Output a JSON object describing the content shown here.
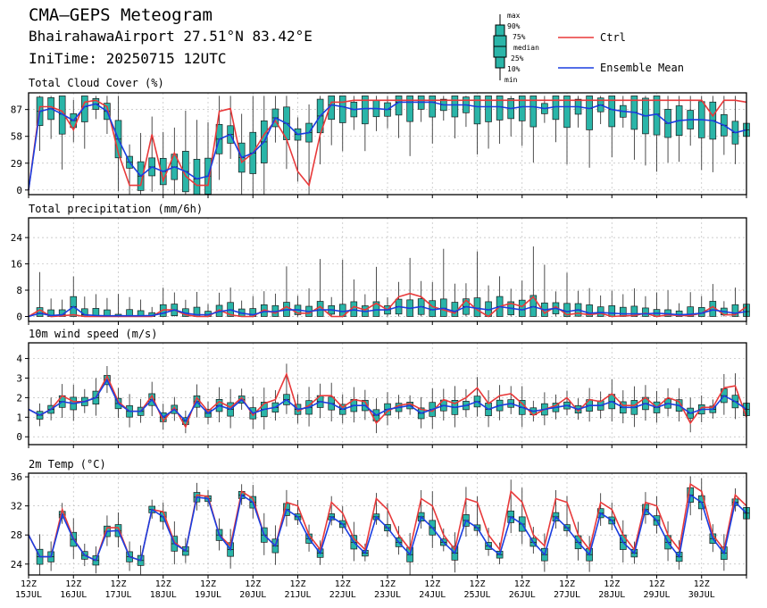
{
  "header": {
    "title": "CMA—GEPS Meteogram",
    "station": "BhairahawaAirport 27.51°N 83.42°E",
    "initime": "IniTime: 20250715 12UTC"
  },
  "legend": {
    "box_labels": [
      "max",
      "90%",
      "75%",
      "median",
      "25%",
      "10%",
      "min"
    ],
    "ctrl_label": "Ctrl",
    "mean_label": "Ensemble Mean",
    "ctrl_color": "#e8393a",
    "mean_color": "#1a3ee0",
    "box_color": "#2ab5a8"
  },
  "x_axis": {
    "tick_top": "12Z",
    "dates": [
      "15JUL",
      "16JUL",
      "17JUL",
      "18JUL",
      "19JUL",
      "20JUL",
      "21JUL",
      "22JUL",
      "23JUL",
      "24JUL",
      "25JUL",
      "26JUL",
      "27JUL",
      "28JUL",
      "29JUL",
      "30JUL"
    ]
  },
  "chart_data": [
    {
      "type": "box+line",
      "title": "Total Cloud Cover (%)",
      "ylim": [
        -5,
        105
      ],
      "yticks": [
        0,
        29,
        58,
        87
      ],
      "ctrl": [
        0,
        90,
        90,
        85,
        65,
        95,
        97,
        90,
        40,
        5,
        5,
        60,
        10,
        40,
        15,
        5,
        5,
        85,
        88,
        30,
        40,
        60,
        75,
        55,
        20,
        5,
        60,
        95,
        95,
        97,
        97,
        97,
        97,
        97,
        97,
        97,
        97,
        97,
        97,
        97,
        97,
        97,
        97,
        97,
        97,
        97,
        97,
        97,
        97,
        97,
        97,
        97,
        97,
        97,
        97,
        97,
        97,
        97,
        97,
        97,
        97,
        80,
        97,
        97,
        95
      ],
      "mean": [
        0,
        85,
        88,
        82,
        75,
        90,
        93,
        85,
        55,
        30,
        15,
        25,
        20,
        25,
        20,
        12,
        15,
        55,
        60,
        35,
        40,
        52,
        78,
        72,
        60,
        62,
        80,
        92,
        90,
        87,
        88,
        88,
        87,
        95,
        95,
        95,
        95,
        92,
        92,
        92,
        90,
        90,
        90,
        88,
        90,
        90,
        88,
        90,
        90,
        90,
        88,
        92,
        87,
        85,
        84,
        80,
        82,
        72,
        75,
        76,
        76,
        75,
        70,
        62,
        65
      ]
    },
    {
      "type": "box+line",
      "title": "Total precipitation (mm/6h)",
      "ylim": [
        -1.5,
        30
      ],
      "yticks": [
        0,
        8,
        16,
        24
      ],
      "ctrl": [
        0,
        2,
        0,
        0.2,
        0.5,
        0,
        0,
        0,
        0,
        0,
        0,
        0,
        2,
        2,
        0.5,
        0,
        0,
        2,
        0.5,
        0,
        0,
        2,
        1,
        3,
        1,
        1,
        3,
        0,
        0,
        3,
        2,
        4,
        2,
        6,
        7,
        6,
        3,
        2,
        1,
        5,
        2,
        0,
        3,
        4,
        3,
        6,
        1,
        3,
        0.5,
        1,
        0.5,
        1,
        0,
        0.2,
        0.3,
        1,
        0,
        0.5,
        0.3,
        0.3,
        1,
        3,
        0.5,
        0.5,
        3
      ],
      "mean": [
        0,
        1,
        0.3,
        0.5,
        3,
        0.5,
        0.3,
        0.2,
        0.2,
        0.2,
        0.2,
        0.3,
        1,
        2,
        1,
        0.5,
        0.5,
        1.5,
        2,
        1,
        0.5,
        1.5,
        1.5,
        2,
        2,
        1.5,
        2,
        2,
        1.5,
        2,
        1.5,
        2,
        2,
        3,
        2.5,
        3,
        2,
        2.5,
        1.5,
        3,
        2.5,
        2,
        3,
        2.5,
        2,
        3,
        2,
        2.5,
        1.5,
        2,
        1,
        1.2,
        1,
        0.8,
        0.8,
        0.8,
        1,
        0.8,
        0.5,
        0.7,
        1,
        2,
        1.5,
        1,
        1.5
      ]
    },
    {
      "type": "box+line",
      "title": "10m wind speed (m/s)",
      "ylim": [
        -0.4,
        4.8
      ],
      "yticks": [
        0,
        1,
        2,
        3,
        4
      ],
      "ctrl": [
        1.4,
        1.1,
        1.4,
        2.1,
        1.8,
        1.8,
        2.0,
        3.1,
        1.8,
        1.3,
        1.3,
        2.1,
        0.8,
        1.5,
        0.5,
        2.0,
        1.3,
        1.8,
        1.5,
        2.0,
        1.1,
        1.7,
        1.9,
        3.2,
        1.3,
        1.6,
        2.1,
        2.1,
        1.5,
        1.9,
        1.8,
        0.7,
        1.3,
        1.6,
        1.7,
        1.4,
        1.3,
        1.9,
        1.7,
        2.0,
        2.5,
        1.7,
        2.1,
        2.2,
        1.7,
        1.1,
        1.4,
        1.6,
        2.0,
        1.3,
        1.9,
        1.8,
        2.2,
        1.6,
        1.6,
        2.0,
        1.5,
        2.0,
        1.8,
        0.7,
        1.5,
        1.5,
        2.5,
        2.6,
        1.0
      ],
      "mean": [
        1.4,
        1.1,
        1.4,
        1.8,
        1.7,
        1.8,
        2.0,
        2.9,
        1.7,
        1.3,
        1.3,
        1.9,
        1.0,
        1.4,
        0.8,
        1.8,
        1.2,
        1.6,
        1.4,
        1.9,
        1.2,
        1.4,
        1.5,
        1.9,
        1.4,
        1.5,
        1.8,
        1.7,
        1.4,
        1.6,
        1.6,
        1.1,
        1.4,
        1.5,
        1.6,
        1.2,
        1.4,
        1.6,
        1.5,
        1.6,
        1.8,
        1.4,
        1.6,
        1.7,
        1.5,
        1.3,
        1.4,
        1.5,
        1.6,
        1.4,
        1.6,
        1.6,
        1.8,
        1.5,
        1.5,
        1.7,
        1.5,
        1.7,
        1.6,
        1.2,
        1.4,
        1.4,
        2.1,
        1.8,
        1.4
      ]
    },
    {
      "type": "box+line",
      "title": "2m Temp (°C)",
      "ylim": [
        22.5,
        36.5
      ],
      "yticks": [
        24,
        28,
        32,
        36
      ],
      "ctrl": [
        28.0,
        25.0,
        25.0,
        31.5,
        27.5,
        25.2,
        24.5,
        29.0,
        29.0,
        25.0,
        24.5,
        31.5,
        31.2,
        27.0,
        25.8,
        33.5,
        33.3,
        28.0,
        26.5,
        34.0,
        33.0,
        28.0,
        26.5,
        32.5,
        32.0,
        28.0,
        26.0,
        32.5,
        31.0,
        27.5,
        26.0,
        33.0,
        31.5,
        28.0,
        26.0,
        33.0,
        32.0,
        28.0,
        26.0,
        33.0,
        32.5,
        28.0,
        26.0,
        34.0,
        32.5,
        28.0,
        26.5,
        33.0,
        32.5,
        28.0,
        26.0,
        32.5,
        31.5,
        28.0,
        26.0,
        32.5,
        32.0,
        28.0,
        26.0,
        35.0,
        34.0,
        28.0,
        26.0,
        33.5,
        32.0
      ],
      "mean": [
        28.0,
        25.0,
        25.0,
        30.8,
        27.4,
        25.2,
        24.5,
        28.5,
        28.6,
        25.0,
        24.5,
        31.5,
        30.5,
        26.8,
        25.8,
        33.2,
        33.0,
        28.0,
        26.0,
        33.5,
        32.5,
        28.0,
        26.5,
        31.5,
        30.5,
        27.5,
        25.5,
        30.5,
        29.5,
        27.0,
        25.5,
        30.5,
        29.0,
        27.0,
        25.3,
        30.5,
        29.0,
        27.0,
        25.5,
        30.0,
        29.0,
        26.5,
        25.3,
        30.5,
        29.5,
        27.0,
        25.3,
        30.5,
        29.0,
        27.0,
        25.3,
        31.0,
        30.0,
        27.0,
        25.5,
        31.5,
        30.0,
        27.0,
        25.0,
        33.5,
        32.5,
        27.5,
        25.5,
        32.5,
        31.0
      ]
    }
  ]
}
